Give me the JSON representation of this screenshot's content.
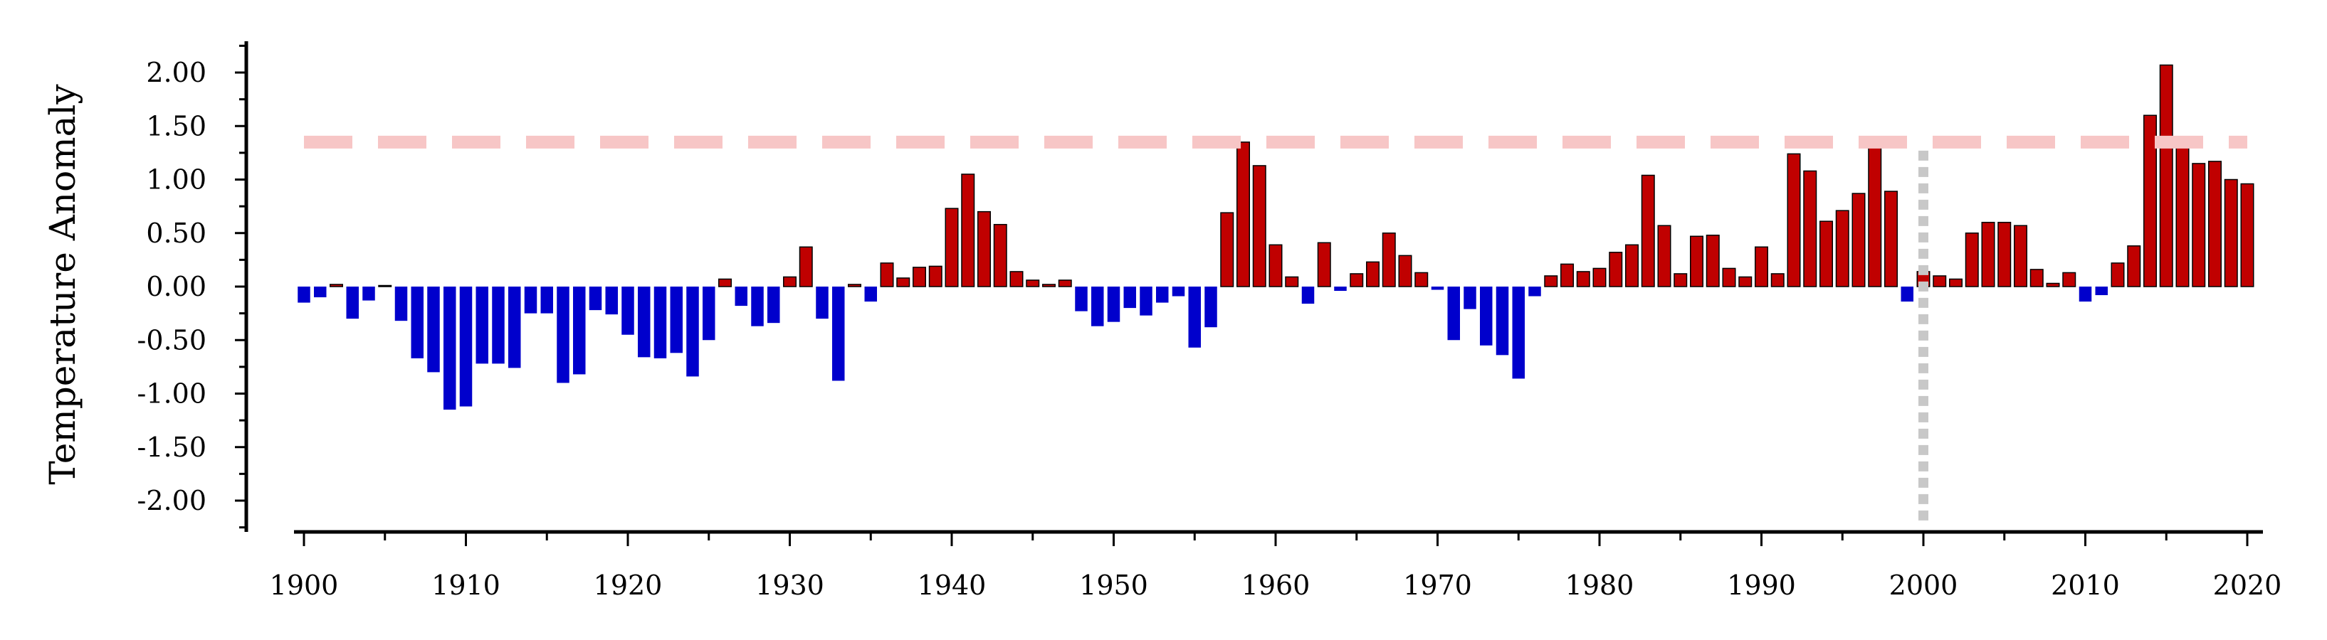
{
  "chart_data": {
    "type": "bar",
    "title": "",
    "xlabel": "",
    "ylabel": "Temperature Anomaly",
    "xlim": [
      1900,
      2020
    ],
    "ylim": [
      -2.25,
      2.25
    ],
    "y_ticks": [
      "2.00",
      "1.50",
      "1.00",
      "0.50",
      "0.00",
      "-0.50",
      "-1.00",
      "-1.50",
      "-2.00"
    ],
    "x_ticks": [
      "1900",
      "1910",
      "1920",
      "1930",
      "1940",
      "1950",
      "1960",
      "1970",
      "1980",
      "1990",
      "2000",
      "2010",
      "2020"
    ],
    "grid": false,
    "legend": "none",
    "colors": {
      "positive": "#c00000",
      "negative": "#0000cc",
      "bar_edge": "#000000",
      "threshold_line": "#f7c6c6",
      "reference_line": "#c8c8c8"
    },
    "threshold_y": 1.35,
    "reference_x": 2000,
    "x": [
      1900,
      1901,
      1902,
      1903,
      1904,
      1905,
      1906,
      1907,
      1908,
      1909,
      1910,
      1911,
      1912,
      1913,
      1914,
      1915,
      1916,
      1917,
      1918,
      1919,
      1920,
      1921,
      1922,
      1923,
      1924,
      1925,
      1926,
      1927,
      1928,
      1929,
      1930,
      1931,
      1932,
      1933,
      1934,
      1935,
      1936,
      1937,
      1938,
      1939,
      1940,
      1941,
      1942,
      1943,
      1944,
      1945,
      1946,
      1947,
      1948,
      1949,
      1950,
      1951,
      1952,
      1953,
      1954,
      1955,
      1956,
      1957,
      1958,
      1959,
      1960,
      1961,
      1962,
      1963,
      1964,
      1965,
      1966,
      1967,
      1968,
      1969,
      1970,
      1971,
      1972,
      1973,
      1974,
      1975,
      1976,
      1977,
      1978,
      1979,
      1980,
      1981,
      1982,
      1983,
      1984,
      1985,
      1986,
      1987,
      1988,
      1989,
      1990,
      1991,
      1992,
      1993,
      1994,
      1995,
      1996,
      1997,
      1998,
      1999,
      2000,
      2001,
      2002,
      2003,
      2004,
      2005,
      2006,
      2007,
      2008,
      2009,
      2010,
      2011,
      2012,
      2013,
      2014,
      2015,
      2016,
      2017,
      2018,
      2019,
      2020
    ],
    "values": [
      -0.15,
      -0.1,
      0.02,
      -0.3,
      -0.13,
      0.0,
      -0.32,
      -0.67,
      -0.8,
      -1.15,
      -1.12,
      -0.72,
      -0.72,
      -0.76,
      -0.25,
      -0.25,
      -0.9,
      -0.82,
      -0.22,
      -0.26,
      -0.45,
      -0.66,
      -0.67,
      -0.62,
      -0.84,
      -0.5,
      0.07,
      -0.18,
      -0.37,
      -0.34,
      0.09,
      0.37,
      -0.3,
      -0.88,
      0.02,
      -0.14,
      0.22,
      0.08,
      0.18,
      0.19,
      0.73,
      1.05,
      0.7,
      0.58,
      0.14,
      0.06,
      0.02,
      0.06,
      -0.23,
      -0.37,
      -0.33,
      -0.2,
      -0.27,
      -0.15,
      -0.09,
      -0.57,
      -0.38,
      0.69,
      1.35,
      1.13,
      0.39,
      0.09,
      -0.16,
      0.41,
      -0.04,
      0.12,
      0.23,
      0.5,
      0.29,
      0.13,
      -0.03,
      -0.5,
      -0.21,
      -0.55,
      -0.64,
      -0.86,
      -0.09,
      0.1,
      0.21,
      0.14,
      0.17,
      0.32,
      0.39,
      1.04,
      0.57,
      0.12,
      0.47,
      0.48,
      0.17,
      0.09,
      0.37,
      0.12,
      1.24,
      1.08,
      0.61,
      0.71,
      0.87,
      1.36,
      0.89,
      -0.14,
      0.14,
      0.1,
      0.07,
      0.5,
      0.6,
      0.6,
      0.57,
      0.16,
      0.03,
      0.13,
      -0.14,
      -0.08,
      0.22,
      0.38,
      1.6,
      2.07,
      1.35,
      1.15,
      1.17,
      1.0,
      0.96
    ]
  }
}
